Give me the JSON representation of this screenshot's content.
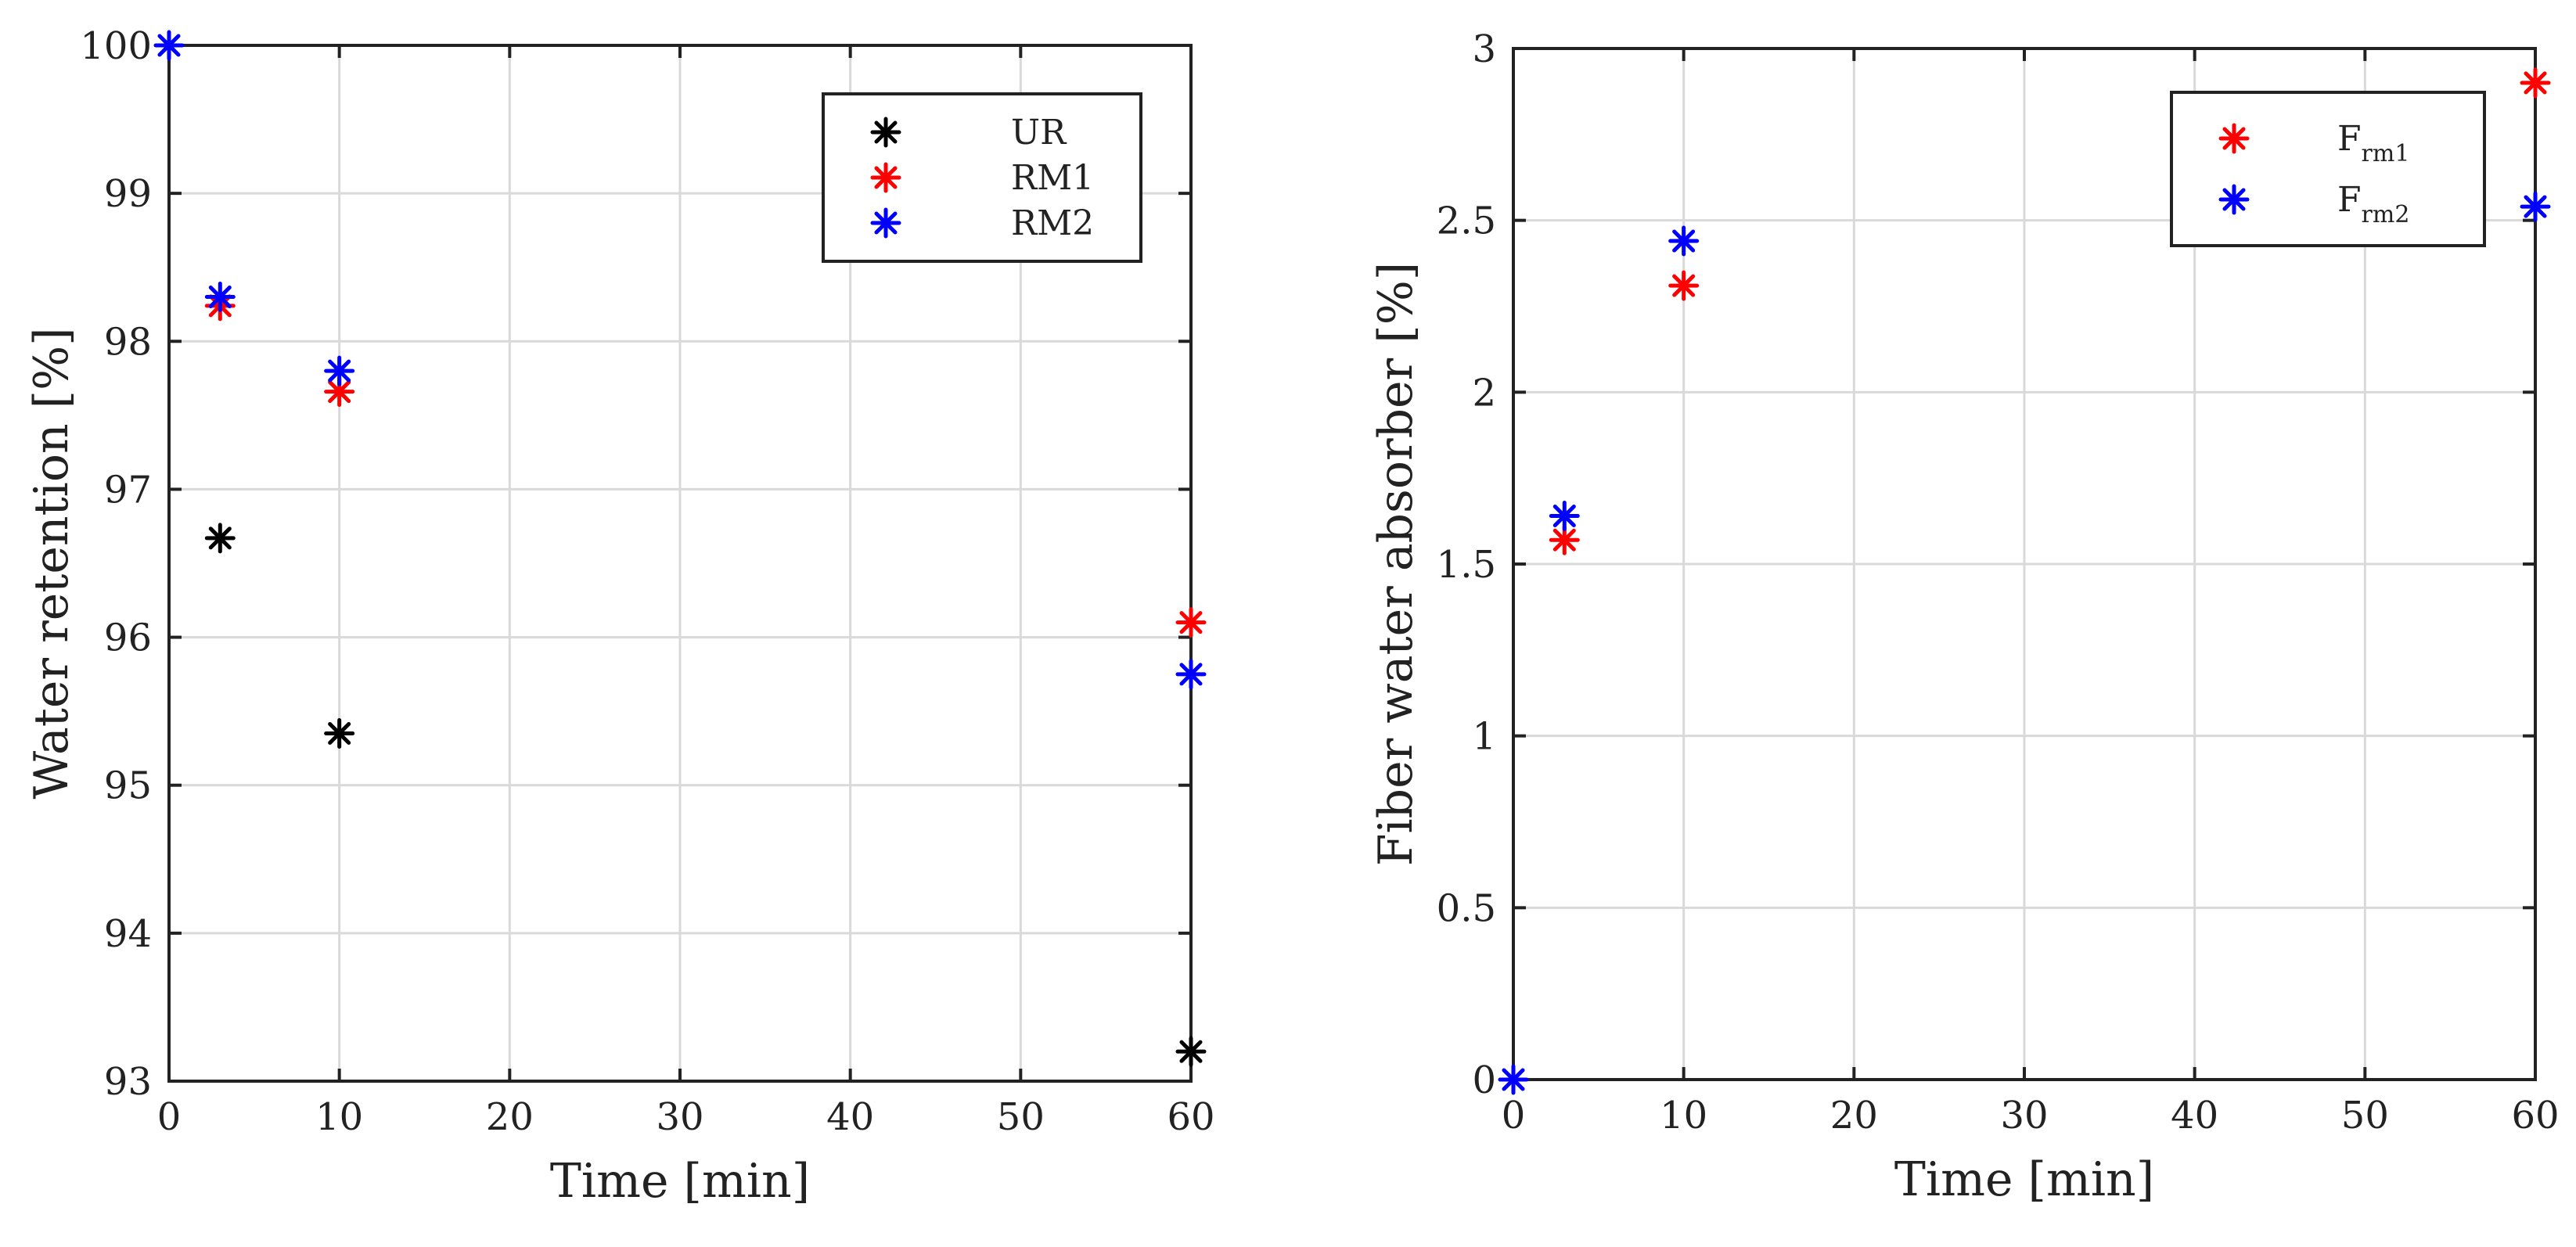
{
  "chart_data": [
    {
      "type": "scatter",
      "title": "",
      "xlabel": "Time [min]",
      "ylabel": "Water retention [%]",
      "xlim": [
        0,
        60
      ],
      "ylim": [
        93,
        100
      ],
      "xticks": [
        0,
        10,
        20,
        30,
        40,
        50,
        60
      ],
      "yticks": [
        93,
        94,
        95,
        96,
        97,
        98,
        99,
        100
      ],
      "grid": true,
      "legend_position": "top-right",
      "series": [
        {
          "name": "UR",
          "color": "#000000",
          "marker": "asterisk",
          "points": [
            {
              "x": 3,
              "y": 96.67
            },
            {
              "x": 10,
              "y": 95.35
            },
            {
              "x": 60,
              "y": 93.2
            }
          ]
        },
        {
          "name": "RM1",
          "color": "#ff0000",
          "marker": "asterisk",
          "points": [
            {
              "x": 3,
              "y": 98.24
            },
            {
              "x": 10,
              "y": 97.66
            },
            {
              "x": 60,
              "y": 96.1
            }
          ]
        },
        {
          "name": "RM2",
          "color": "#0000ff",
          "marker": "asterisk",
          "points": [
            {
              "x": 0,
              "y": 100
            },
            {
              "x": 3,
              "y": 98.3
            },
            {
              "x": 10,
              "y": 97.8
            },
            {
              "x": 60,
              "y": 95.75
            }
          ]
        }
      ]
    },
    {
      "type": "scatter",
      "title": "",
      "xlabel": "Time [min]",
      "ylabel": "Fiber water absorber [%]",
      "xlim": [
        0,
        60
      ],
      "ylim": [
        0,
        3
      ],
      "xticks": [
        0,
        10,
        20,
        30,
        40,
        50,
        60
      ],
      "yticks": [
        0,
        0.5,
        1,
        1.5,
        2,
        2.5,
        3
      ],
      "grid": true,
      "legend_position": "top-right",
      "series": [
        {
          "name": "F",
          "subscript": "rm1",
          "color": "#ff0000",
          "marker": "asterisk",
          "points": [
            {
              "x": 3,
              "y": 1.57
            },
            {
              "x": 10,
              "y": 2.31
            },
            {
              "x": 60,
              "y": 2.9
            }
          ]
        },
        {
          "name": "F",
          "subscript": "rm2",
          "color": "#0000ff",
          "marker": "asterisk",
          "points": [
            {
              "x": 0,
              "y": 0
            },
            {
              "x": 3,
              "y": 1.64
            },
            {
              "x": 10,
              "y": 2.44
            },
            {
              "x": 60,
              "y": 2.54
            }
          ]
        }
      ]
    }
  ]
}
